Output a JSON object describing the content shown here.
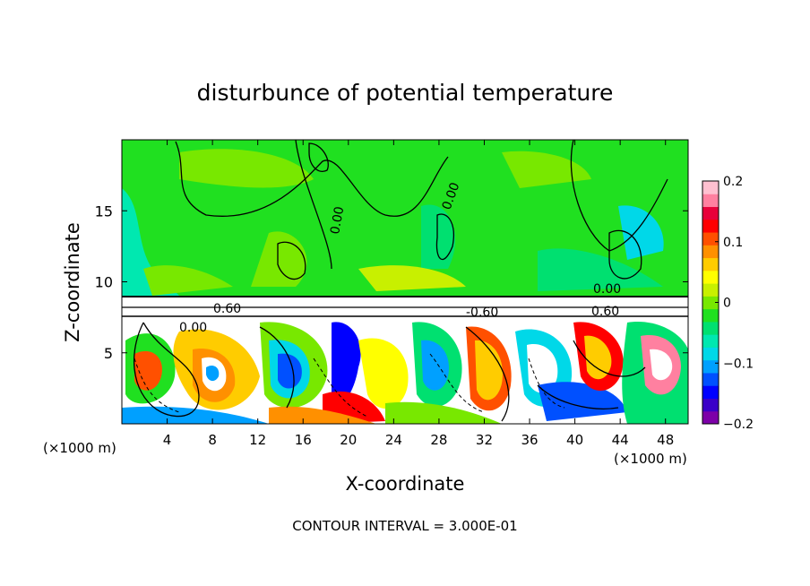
{
  "chart_data": {
    "type": "heatmap",
    "title": "disturbunce of potential temperature",
    "xlabel": "X-coordinate",
    "ylabel": "Z-coordinate",
    "x_unit": "(×1000 m)",
    "y_unit": "(×1000 m)",
    "xlim": [
      0,
      50
    ],
    "ylim": [
      0,
      20
    ],
    "x_ticks": [
      4,
      8,
      12,
      16,
      20,
      24,
      28,
      32,
      36,
      40,
      44,
      48
    ],
    "y_ticks": [
      5,
      10,
      15
    ],
    "colorbar": {
      "min": -0.2,
      "max": 0.2,
      "tick_values": [
        0.2,
        0.1,
        0,
        -0.1,
        -0.2
      ],
      "tick_labels": [
        "0.2",
        "0.1",
        "0",
        "−0.1",
        "−0.2"
      ],
      "colors": [
        "#7d00a8",
        "#3a00c8",
        "#0000ff",
        "#0050ff",
        "#00a0ff",
        "#00d8e8",
        "#00e8b0",
        "#00e070",
        "#20e020",
        "#78e800",
        "#c8f000",
        "#ffff00",
        "#ffcc00",
        "#ff9000",
        "#ff5000",
        "#ff0000",
        "#e8003a",
        "#ff80a0",
        "#ffc0d0"
      ]
    },
    "contour_labels": [
      "0.60",
      "0.00",
      "-0.60"
    ],
    "footer": "CONTOUR INTERVAL = 3.000E-01"
  }
}
